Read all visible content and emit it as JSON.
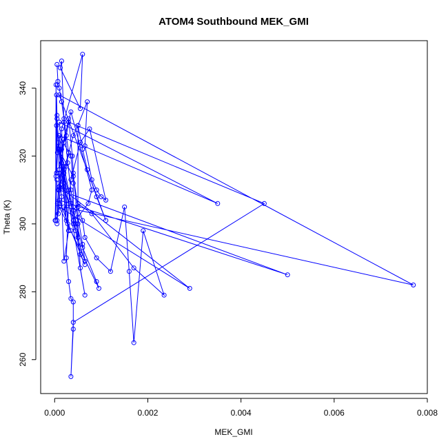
{
  "chart_data": {
    "type": "line",
    "title": "ATOM4 Southbound MEK_GMI",
    "xlabel": "MEK_GMI",
    "ylabel": "Theta (K)",
    "xlim": [
      -0.0003,
      0.008
    ],
    "ylim": [
      250,
      354
    ],
    "x_ticks": [
      0.0,
      0.002,
      0.004,
      0.006,
      0.008
    ],
    "x_tick_labels": [
      "0.000",
      "0.002",
      "0.004",
      "0.006",
      "0.008"
    ],
    "y_ticks": [
      260,
      280,
      300,
      320,
      340
    ],
    "y_tick_labels": [
      "260",
      "280",
      "300",
      "320",
      "340"
    ],
    "grid": false,
    "legend": "none",
    "colors": {
      "series": "#0000ff",
      "frame": "#000000"
    },
    "series": [
      {
        "markers": "open-circle",
        "x": [
          5e-05,
          7e-05,
          6e-05,
          0.0001,
          0.00015,
          0.0002,
          0.0003,
          0.00025,
          0.0002,
          0.00015,
          0.0006,
          0.00055,
          0.00012,
          0.00015,
          0.0002,
          0.00028,
          0.00035,
          0.0004,
          0.00045,
          0.0005,
          0.0005,
          0.0007,
          0.00065,
          0.0008,
          0.0009,
          0.001,
          0.0011,
          0.00075,
          0.00055,
          0.00035,
          0.0003,
          0.00028,
          0.00025,
          0.0003,
          0.00035,
          0.0004,
          0.0004,
          0.00035,
          0.0004,
          0.0045,
          0.0003,
          0.00025,
          0.00015,
          0.0001,
          8e-05,
          6e-05,
          5e-05,
          5e-05,
          0.0001,
          0.0002,
          0.00035,
          0.0008,
          0.00072,
          0.0005,
          0.0006,
          0.00065,
          0.0004,
          0.0004,
          0.00035,
          0.0001,
          0.0035,
          0.0001,
          0.0002,
          0.0003,
          0.0002,
          0.00015,
          0.0001,
          8e-05,
          0.0004,
          0.0005,
          0.0006,
          0.00065,
          0.0009,
          0.0012,
          0.0015,
          0.0016,
          0.0017,
          0.0019,
          0.00235,
          0.0017,
          0.0008,
          0.0005,
          0.0004,
          0.0002,
          0.0001,
          5e-05,
          4e-05,
          5e-05,
          3e-05,
          1e-05,
          8e-05,
          0.0001,
          0.00015,
          0.0002,
          0.0003,
          0.00038,
          0.0004,
          0.0005,
          0.00055,
          0.00065,
          0.0001,
          0.0002,
          0.0003,
          0.0004,
          0.0006,
          0.0009,
          0.00095,
          0.0001,
          0.0029,
          0.0001,
          0.0002,
          0.00035,
          0.00045,
          0.00055,
          0.00065,
          0.00035,
          0.0001,
          0.005,
          0.0001,
          0.0002,
          0.0003,
          0.0004,
          0.0005,
          0.0006,
          0.0007,
          0.0009,
          0.0011,
          0.0001,
          0.0077,
          0.0002,
          0.0003,
          0.0001,
          0.00025,
          4e-05,
          6e-05,
          8e-05,
          4e-05,
          3e-05,
          2e-05,
          5e-05
        ],
        "y": [
          347,
          342,
          341,
          340,
          336,
          331,
          321,
          317,
          312,
          328,
          350,
          334,
          346,
          348,
          330,
          318,
          310,
          305,
          300,
          296,
          329,
          336,
          323,
          313,
          310,
          308,
          307,
          328,
          324,
          313,
          306,
          300,
          290,
          283,
          278,
          277,
          269,
          255,
          271,
          306,
          330,
          326,
          322,
          316,
          310,
          306,
          301,
          300,
          311,
          325,
          333,
          310,
          306,
          302,
          294,
          289,
          300,
          312,
          320,
          326,
          306,
          330,
          316,
          298,
          289,
          308,
          315,
          322,
          314,
          305,
          301,
          296,
          290,
          286,
          305,
          286,
          265,
          298,
          279,
          287,
          303,
          306,
          301,
          311,
          322,
          331,
          338,
          332,
          314,
          301,
          303,
          306,
          318,
          324,
          331,
          320,
          315,
          300,
          287,
          279,
          322,
          317,
          310,
          304,
          293,
          283,
          281,
          305,
          281,
          311,
          315,
          306,
          298,
          291,
          288,
          298,
          307,
          285,
          310,
          316,
          321,
          326,
          329,
          322,
          316,
          308,
          301,
          338,
          282,
          305,
          298,
          326,
          301,
          329,
          321,
          324,
          315,
          341,
          301,
          313
        ]
      }
    ]
  }
}
